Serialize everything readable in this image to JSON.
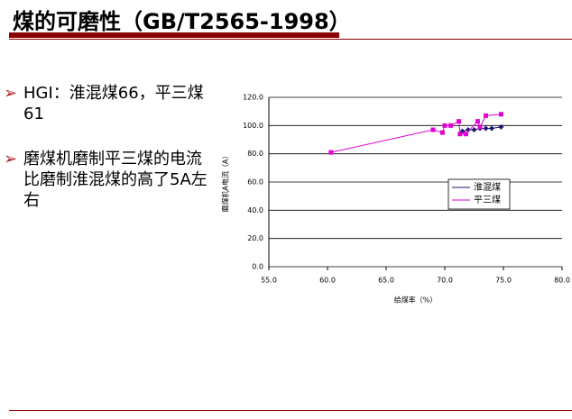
{
  "slide": {
    "title": "煤的可磨性（GB/T2565-1998）",
    "bullets": [
      "HGI：淮混煤66，平三煤61",
      "磨煤机磨制平三煤的电流比磨制淮混煤的高了5A左右"
    ]
  },
  "chart_data": {
    "type": "scatter-line",
    "x_label": "给煤率（%）",
    "y_label": "磨煤机A电流（A）",
    "xlim": [
      55,
      80
    ],
    "xticks": [
      {
        "value": 55,
        "label": "55.0"
      },
      {
        "value": 60,
        "label": "60.0"
      },
      {
        "value": 65,
        "label": "65.0"
      },
      {
        "value": 70,
        "label": "70.0"
      },
      {
        "value": 75,
        "label": "75.0"
      },
      {
        "value": 80,
        "label": "80.0"
      }
    ],
    "ylim": [
      0,
      120
    ],
    "yticks": [
      {
        "value": 0,
        "label": "0.0"
      },
      {
        "value": 20,
        "label": "20.0"
      },
      {
        "value": 40,
        "label": "40.0"
      },
      {
        "value": 60,
        "label": "60.0"
      },
      {
        "value": 80,
        "label": "80.0"
      },
      {
        "value": 100,
        "label": "100.0"
      },
      {
        "value": 120,
        "label": "120.0"
      }
    ],
    "grid": true,
    "series": [
      {
        "name": "淮混煤",
        "color": "#1a1a6e",
        "marker": "diamond",
        "x": [
          71.5,
          72,
          72.5,
          73,
          73.5,
          74,
          74.8
        ],
        "values": [
          96,
          97,
          97,
          98,
          98,
          98,
          99
        ]
      },
      {
        "name": "平三煤",
        "color": "#e000d0",
        "marker": "square",
        "x": [
          60.3,
          69,
          69.8,
          70,
          70.5,
          71.2,
          71.3,
          71.8,
          72.8,
          73,
          73.5,
          74.8
        ],
        "values": [
          81,
          97,
          95,
          100,
          100,
          103,
          94,
          94,
          103,
          99,
          107,
          108
        ]
      }
    ]
  }
}
